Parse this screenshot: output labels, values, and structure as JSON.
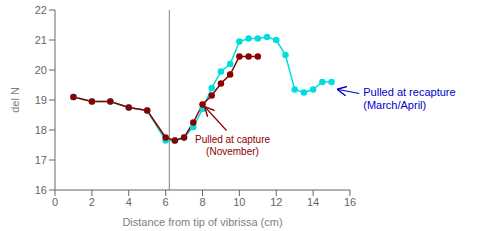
{
  "chart_data": {
    "type": "line",
    "xlabel": "Distance from tip of vibrissa (cm)",
    "ylabel": "del N",
    "xlim": [
      0,
      16
    ],
    "ylim": [
      16,
      22
    ],
    "xticks": [
      0,
      2,
      4,
      6,
      8,
      10,
      12,
      14,
      16
    ],
    "yticks": [
      16,
      17,
      18,
      19,
      20,
      21,
      22
    ],
    "series": [
      {
        "color": "#00DDDD",
        "marker": "circle",
        "x": [
          1,
          2,
          3,
          4,
          5,
          6,
          6.5,
          7,
          7.5,
          8,
          8.5,
          9,
          9.5,
          10,
          10.5,
          11,
          11.5,
          12,
          12.5,
          13,
          13.5,
          14,
          14.5,
          15
        ],
        "values": [
          19.1,
          18.95,
          18.95,
          18.75,
          18.65,
          17.65,
          17.65,
          17.75,
          18.1,
          18.7,
          19.4,
          19.95,
          20.2,
          20.95,
          21.05,
          21.05,
          21.1,
          21.0,
          20.5,
          19.35,
          19.25,
          19.35,
          19.6,
          19.6
        ]
      },
      {
        "color": "#8B0000",
        "marker": "circle",
        "x": [
          1,
          2,
          3,
          4,
          5,
          6,
          6.5,
          7,
          7.5,
          8,
          8.5,
          9,
          9.5,
          10,
          10.5,
          11
        ],
        "values": [
          19.1,
          18.95,
          18.95,
          18.75,
          18.65,
          17.75,
          17.65,
          17.75,
          18.25,
          18.85,
          19.15,
          19.55,
          19.85,
          20.45,
          20.45,
          20.45
        ]
      }
    ],
    "vline": {
      "x": 6.2,
      "color": "gray"
    },
    "annotations": [
      {
        "text": "Pulled at capture\n(November)",
        "color": "#8B0000",
        "x": 8.0,
        "y": 18.85
      },
      {
        "text": "Pulled at recapture\n(March/April)",
        "color": "#0000CC",
        "x": 15.2,
        "y": 19.35
      }
    ]
  }
}
